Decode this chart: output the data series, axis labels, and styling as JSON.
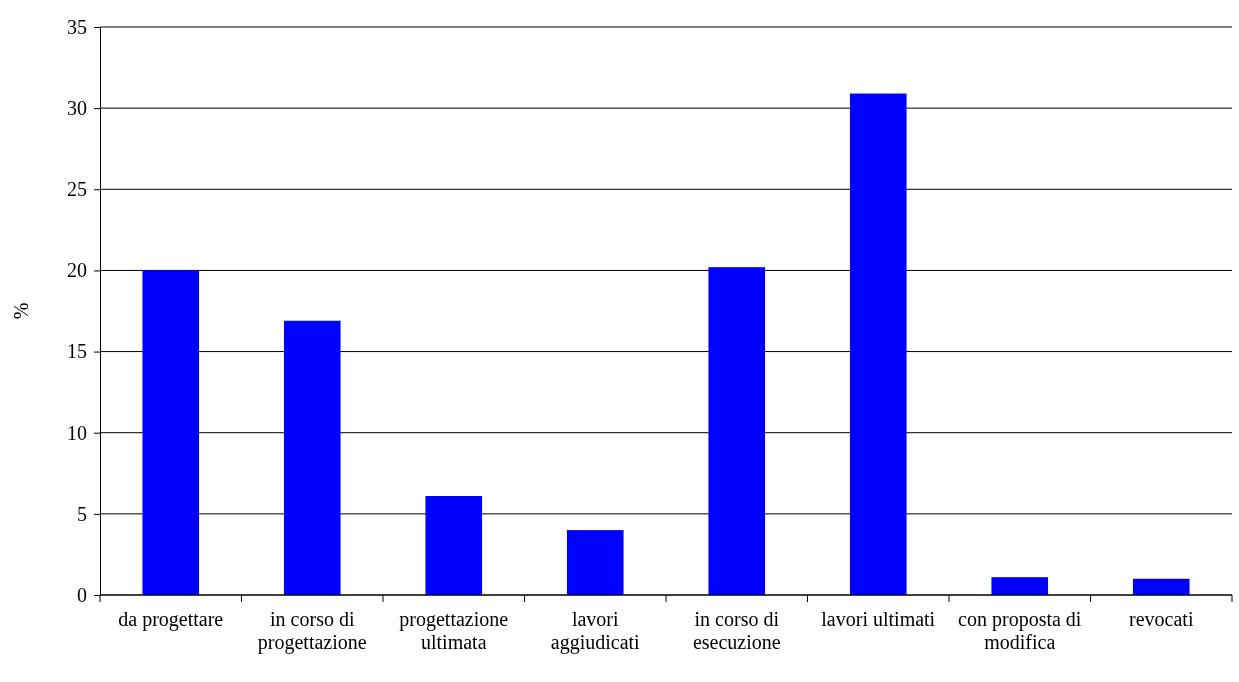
{
  "chart_data": {
    "type": "bar",
    "ylabel": "%",
    "categories": [
      "da progettare",
      "in corso di progettazione",
      "progettazione ultimata",
      "lavori aggiudicati",
      "in corso di esecuzione",
      "lavori ultimati",
      "con proposta di modifica",
      "revocati"
    ],
    "values": [
      20.0,
      16.9,
      6.1,
      4.0,
      20.2,
      30.9,
      1.1,
      1.0
    ],
    "color": "#0000ff",
    "ylim": [
      0,
      35
    ],
    "yticks": [
      0,
      5,
      10,
      15,
      20,
      25,
      30,
      35
    ],
    "grid": "y"
  }
}
